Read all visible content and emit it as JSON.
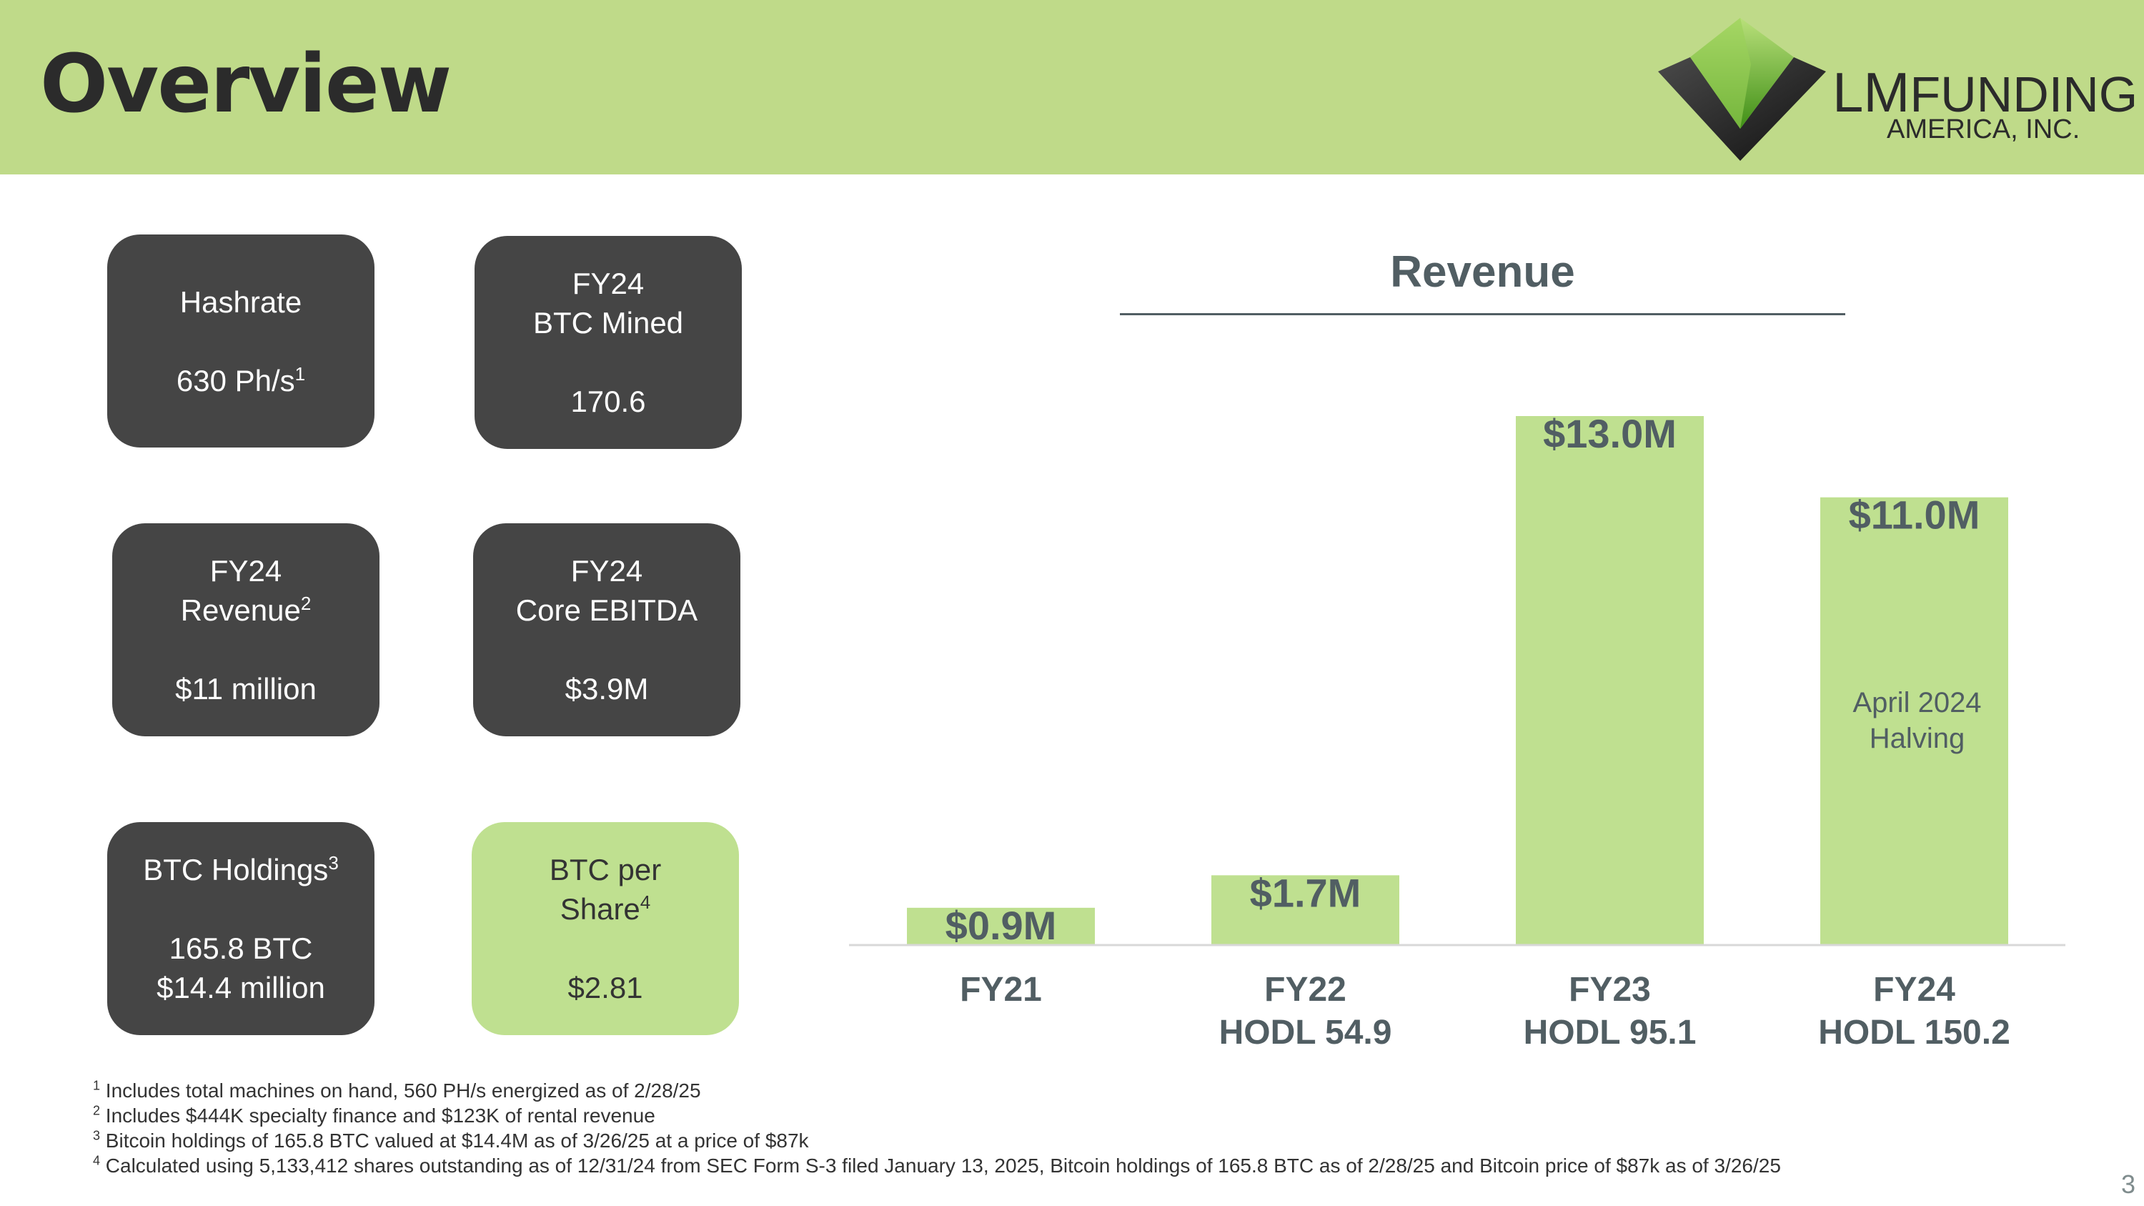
{
  "header": {
    "title": "Overview",
    "logo": {
      "line1_big": "LM",
      "line1_rest": "FUNDING",
      "line2": "AMERICA, INC."
    }
  },
  "cards": [
    {
      "line1": "Hashrate",
      "line2": "",
      "value": "630 Ph/s",
      "value_sup": "1",
      "value2": "",
      "style": "dark"
    },
    {
      "line1": "FY24",
      "line2": "BTC Mined",
      "value": "170.6",
      "value_sup": "",
      "value2": "",
      "style": "dark"
    },
    {
      "line1": "FY24",
      "line2": "Revenue",
      "line2_sup": "2",
      "value": "$11 million",
      "value_sup": "",
      "value2": "",
      "style": "dark"
    },
    {
      "line1": "FY24",
      "line2": "Core EBITDA",
      "value": "$3.9M",
      "value_sup": "",
      "value2": "",
      "style": "dark"
    },
    {
      "line1": "BTC Holdings",
      "line1_sup": "3",
      "line2": "",
      "value": "165.8 BTC",
      "value_sup": "",
      "value2": "$14.4 million",
      "style": "dark"
    },
    {
      "line1": "BTC per",
      "line2": "Share",
      "line2_sup": "4",
      "value": "$2.81",
      "value_sup": "",
      "value2": "",
      "style": "green"
    }
  ],
  "chart_data": {
    "type": "bar",
    "title": "Revenue",
    "categories": [
      "FY21",
      "FY22",
      "FY23",
      "FY24"
    ],
    "category_sublabels": [
      "",
      "HODL 54.9",
      "HODL 95.1",
      "HODL 150.2"
    ],
    "values": [
      0.9,
      1.7,
      13.0,
      11.0
    ],
    "value_labels": [
      "$0.9M",
      "$1.7M",
      "$13.0M",
      "$11.0M"
    ],
    "unit": "$M",
    "annotation": {
      "category": "FY24",
      "lines": [
        "April 2024",
        "Halving"
      ]
    },
    "bar_color": "#bfe090",
    "label_color": "#515e63",
    "ylim": [
      0,
      13.0
    ],
    "grid": false
  },
  "footnotes": [
    {
      "num": "1",
      "text": "Includes total machines on hand, 560 PH/s energized as of 2/28/25"
    },
    {
      "num": "2",
      "text": "Includes $444K specialty finance and $123K of rental revenue"
    },
    {
      "num": "3",
      "text": "Bitcoin holdings of 165.8 BTC valued at $14.4M as of 3/26/25 at a price of $87k"
    },
    {
      "num": "4",
      "text": "Calculated using 5,133,412 shares outstanding as of 12/31/24 from SEC Form S-3 filed January 13, 2025, Bitcoin holdings of 165.8 BTC as of 2/28/25 and Bitcoin price of $87k as of 3/26/25"
    }
  ],
  "page_number": "3"
}
